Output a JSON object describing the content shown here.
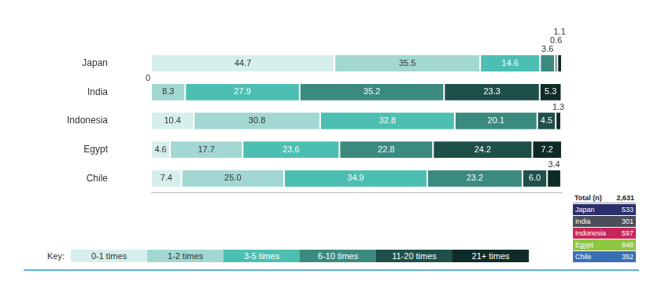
{
  "chart_data": {
    "type": "bar",
    "orientation": "horizontal",
    "stacked": true,
    "data_labels": true,
    "tick_labels": "y",
    "grid": false,
    "legend": "bottom",
    "legend_title": "Key:",
    "categories": [
      "Japan",
      "India",
      "Indonesia",
      "Egypt",
      "Chile"
    ],
    "xlim": [
      0,
      100.1
    ],
    "series": [
      {
        "name": "0-1 times",
        "color": "#d6efec",
        "values": [
          44.7,
          0,
          10.4,
          4.6,
          7.4
        ],
        "value_labels": [
          "44.7",
          "0",
          "10.4",
          "4.6",
          "7.4"
        ]
      },
      {
        "name": "1-2 times",
        "color": "#a2d8d1",
        "values": [
          35.5,
          8.3,
          30.8,
          17.7,
          25.0
        ],
        "value_labels": [
          "35.5",
          "8.3",
          "30.8",
          "17.7",
          "25.0"
        ]
      },
      {
        "name": "3-5 times",
        "color": "#4dbfb2",
        "values": [
          14.6,
          27.9,
          32.8,
          23.6,
          34.9
        ],
        "value_labels": [
          "14.6",
          "27.9",
          "32.8",
          "23.6",
          "34.9"
        ]
      },
      {
        "name": "6-10 times",
        "color": "#3a8a80",
        "values": [
          3.6,
          35.2,
          20.1,
          22.8,
          23.2
        ],
        "value_labels": [
          "3.6",
          "35.2",
          "20.1",
          "22.8",
          "23.2"
        ]
      },
      {
        "name": "11-20 times",
        "color": "#1f4f49",
        "values": [
          0.6,
          23.3,
          4.5,
          24.2,
          6.0
        ],
        "value_labels": [
          "0.6",
          "23.3",
          "4.5",
          "24.2",
          "6.0"
        ]
      },
      {
        "name": "21+ times",
        "color": "#0f2b28",
        "values": [
          1.1,
          5.3,
          1.3,
          7.2,
          3.4
        ],
        "value_labels": [
          "1.1",
          "5.3",
          "1.3",
          "7.2",
          "3.4"
        ]
      }
    ]
  },
  "table": {
    "header": [
      "Total (n)",
      "2,631"
    ],
    "rows": [
      [
        "Japan",
        "533"
      ],
      [
        "India",
        "301"
      ],
      [
        "Indonesia",
        "597"
      ],
      [
        "Egypt",
        "848"
      ],
      [
        "Chile",
        "352"
      ]
    ],
    "colors": [
      "#2b2f6b",
      "#4a4f5a",
      "#c8265a",
      "#8dc63f",
      "#3a6fb5"
    ]
  }
}
